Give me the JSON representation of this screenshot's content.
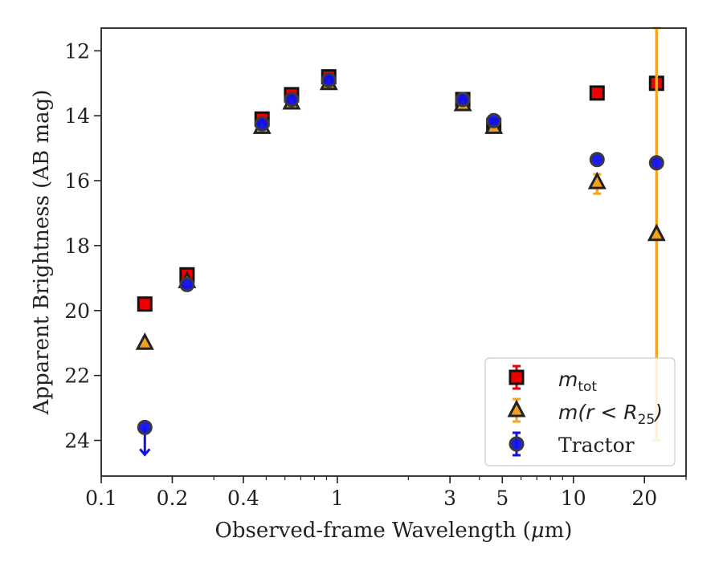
{
  "chart_data": {
    "type": "scatter",
    "xlabel_text": "Observed-frame Wavelength (",
    "xlabel_mu": "μ",
    "xlabel_end": "m)",
    "ylabel": "Apparent Brightness (AB mag)",
    "x_scale": "log",
    "xlim": [
      0.1,
      30
    ],
    "ylim": [
      25.1,
      11.3
    ],
    "y_inverted": true,
    "x_ticks": [
      0.1,
      0.2,
      0.4,
      1,
      3,
      5,
      10,
      20
    ],
    "x_tick_labels": [
      "0.1",
      "0.2",
      "0.4",
      "1",
      "3",
      "5",
      "10",
      "20"
    ],
    "y_ticks": [
      12,
      14,
      16,
      18,
      20,
      22,
      24
    ],
    "y_tick_labels": [
      "12",
      "14",
      "16",
      "18",
      "20",
      "22",
      "24"
    ],
    "grid": false,
    "legend_position": "bottom-right",
    "series": [
      {
        "key": "mtot",
        "legend_main": "m",
        "legend_sub": "tot",
        "marker": "square",
        "fill": "#ee0000",
        "edge": "#111111",
        "errcolor": "#ee0000",
        "points": [
          {
            "x": 0.153,
            "y": 19.8
          },
          {
            "x": 0.231,
            "y": 18.9
          },
          {
            "x": 0.48,
            "y": 14.1
          },
          {
            "x": 0.64,
            "y": 13.35
          },
          {
            "x": 0.92,
            "y": 12.8
          },
          {
            "x": 3.4,
            "y": 13.5
          },
          {
            "x": 4.6,
            "y": 14.3
          },
          {
            "x": 12.6,
            "y": 13.3
          },
          {
            "x": 22.5,
            "y": 13.0
          }
        ]
      },
      {
        "key": "mR25",
        "legend_pre": "m(r < R",
        "legend_sub": "25",
        "legend_post": ")",
        "marker": "triangle",
        "fill": "#f0a020",
        "edge": "#222222",
        "errcolor": "#f5a623",
        "points": [
          {
            "x": 0.153,
            "y": 21.0
          },
          {
            "x": 0.231,
            "y": 19.1
          },
          {
            "x": 0.48,
            "y": 14.35
          },
          {
            "x": 0.64,
            "y": 13.6
          },
          {
            "x": 0.92,
            "y": 13.0
          },
          {
            "x": 3.4,
            "y": 13.65
          },
          {
            "x": 4.6,
            "y": 14.35
          },
          {
            "x": 12.6,
            "y": 16.05,
            "err_lo": 0.35,
            "err_hi": 0.25
          },
          {
            "x": 22.5,
            "y": 17.65,
            "err_lo": 6.35,
            "err_hi": 6.35
          }
        ]
      },
      {
        "key": "tractor",
        "legend_main": "Tractor",
        "marker": "circle",
        "fill": "#1010ee",
        "edge": "#3a3a3a",
        "errcolor": "#1010ee",
        "points": [
          {
            "x": 0.153,
            "y": 23.6,
            "upper_limit": true
          },
          {
            "x": 0.231,
            "y": 19.2
          },
          {
            "x": 0.48,
            "y": 14.25
          },
          {
            "x": 0.64,
            "y": 13.5
          },
          {
            "x": 0.92,
            "y": 12.9
          },
          {
            "x": 3.4,
            "y": 13.5
          },
          {
            "x": 4.6,
            "y": 14.15
          },
          {
            "x": 12.6,
            "y": 15.35
          },
          {
            "x": 22.5,
            "y": 15.45
          }
        ]
      }
    ]
  }
}
